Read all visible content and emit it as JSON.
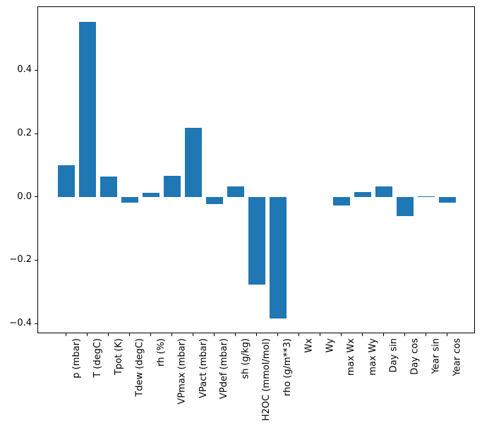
{
  "chart_data": {
    "type": "bar",
    "title": "",
    "xlabel": "",
    "ylabel": "",
    "categories": [
      "p (mbar)",
      "T (degC)",
      "Tpot (K)",
      "Tdew (degC)",
      "rh (%)",
      "VPmax (mbar)",
      "VPact (mbar)",
      "VPdef (mbar)",
      "sh (g/kg)",
      "H2OC (mmol/mol)",
      "rho (g/m**3)",
      "Wx",
      "Wy",
      "max Wx",
      "max Wy",
      "Day sin",
      "Day cos",
      "Year sin",
      "Year cos"
    ],
    "values": [
      0.1,
      0.554,
      0.066,
      -0.017,
      0.015,
      0.068,
      0.22,
      -0.021,
      0.033,
      -0.277,
      -0.384,
      0.0,
      0.0,
      -0.026,
      0.017,
      0.034,
      -0.06,
      0.002,
      -0.018
    ],
    "ylim": [
      -0.432,
      0.6
    ],
    "yticks": [
      0.4,
      0.2,
      0.0,
      -0.2,
      -0.4
    ],
    "ytick_labels": [
      "0.4",
      "0.2",
      "0.0",
      "−0.2",
      "−0.4"
    ],
    "bar_width_fraction": 0.8,
    "grid": false,
    "legend": null,
    "colors": {
      "bar": "#1f77b4",
      "spine": "#000000",
      "background": "#ffffff",
      "tick_text": "#000000"
    }
  }
}
